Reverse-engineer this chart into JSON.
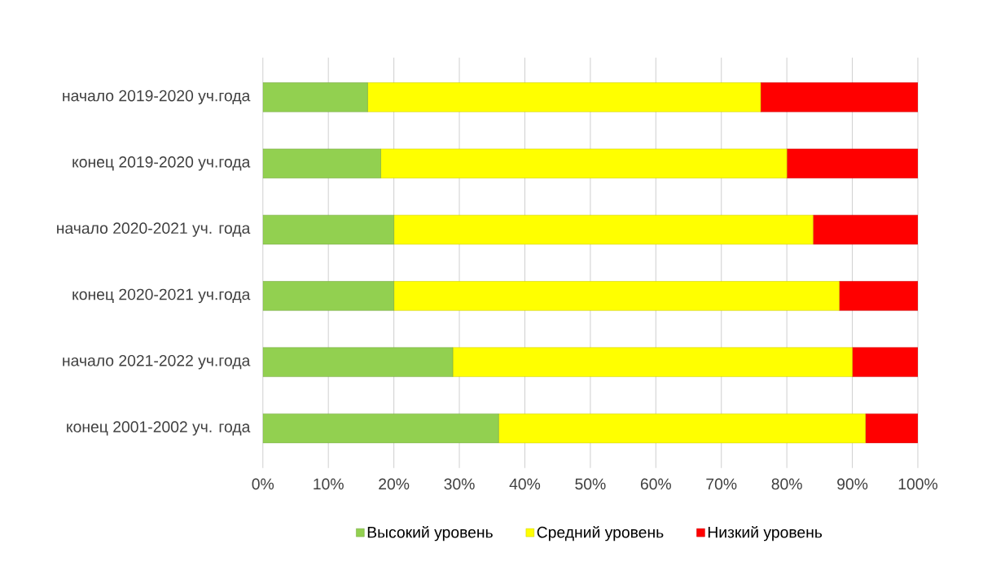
{
  "chart_data": {
    "type": "bar",
    "orientation": "horizontal",
    "stacked": true,
    "categories": [
      "начало 2019-2020 уч.года",
      "конец 2019-2020 уч.года",
      "начало 2020-2021 уч. года",
      "конец 2020-2021 уч.года",
      "начало 2021-2022 уч.года",
      "конец 2001-2002 уч. года"
    ],
    "series": [
      {
        "name": "Высокий уровень",
        "color": "#92d050",
        "values": [
          16,
          18,
          20,
          20,
          29,
          36
        ]
      },
      {
        "name": "Средний уровень",
        "color": "#ffff00",
        "values": [
          60,
          62,
          64,
          68,
          61,
          56
        ]
      },
      {
        "name": "Низкий уровень",
        "color": "#ff0000",
        "values": [
          24,
          20,
          16,
          12,
          10,
          8
        ]
      }
    ],
    "xlim": [
      0,
      100
    ],
    "xticks": [
      {
        "value": 0,
        "label": "0%"
      },
      {
        "value": 10,
        "label": "10%"
      },
      {
        "value": 20,
        "label": "20%"
      },
      {
        "value": 30,
        "label": "30%"
      },
      {
        "value": 40,
        "label": "40%"
      },
      {
        "value": 50,
        "label": "50%"
      },
      {
        "value": 60,
        "label": "60%"
      },
      {
        "value": 70,
        "label": "70%"
      },
      {
        "value": 80,
        "label": "80%"
      },
      {
        "value": 90,
        "label": "90%"
      },
      {
        "value": 100,
        "label": "100%"
      }
    ],
    "grid": "x",
    "legend": "bottom"
  }
}
